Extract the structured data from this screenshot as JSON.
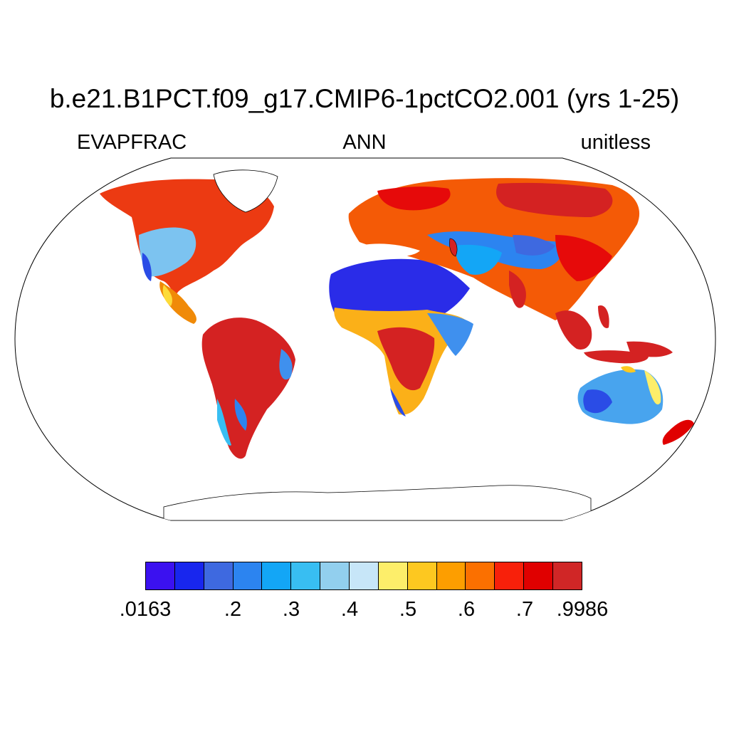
{
  "title": "b.e21.B1PCT.f09_g17.CMIP6-1pctCO2.001 (yrs 1-25)",
  "left_label": "EVAPFRAC",
  "center_label": "ANN",
  "right_label": "unitless",
  "colorbar": {
    "colors": [
      "#3b11f0",
      "#1826ee",
      "#3e69e0",
      "#2c84f0",
      "#13a6f6",
      "#38bef2",
      "#92cfee",
      "#c7e6f8",
      "#fdee6a",
      "#fdc820",
      "#fd9e00",
      "#fb7000",
      "#f8200a",
      "#e00000",
      "#d02626"
    ],
    "tick_labels": [
      ".0163",
      ".2",
      ".3",
      ".4",
      ".5",
      ".6",
      ".7",
      ".9986"
    ]
  },
  "map": {
    "projection": "robinson",
    "ocean_color": "#ffffff",
    "regions": [
      {
        "name": "north-america",
        "color": "#e82a10"
      },
      {
        "name": "south-america",
        "color": "#d42222"
      },
      {
        "name": "sahara",
        "color": "#2a2ce8"
      },
      {
        "name": "central-africa",
        "color": "#d42222"
      },
      {
        "name": "eurasia",
        "color": "#f45a06"
      },
      {
        "name": "australia",
        "color": "#48a4ee"
      },
      {
        "name": "southeast-asia",
        "color": "#d42222"
      }
    ]
  }
}
